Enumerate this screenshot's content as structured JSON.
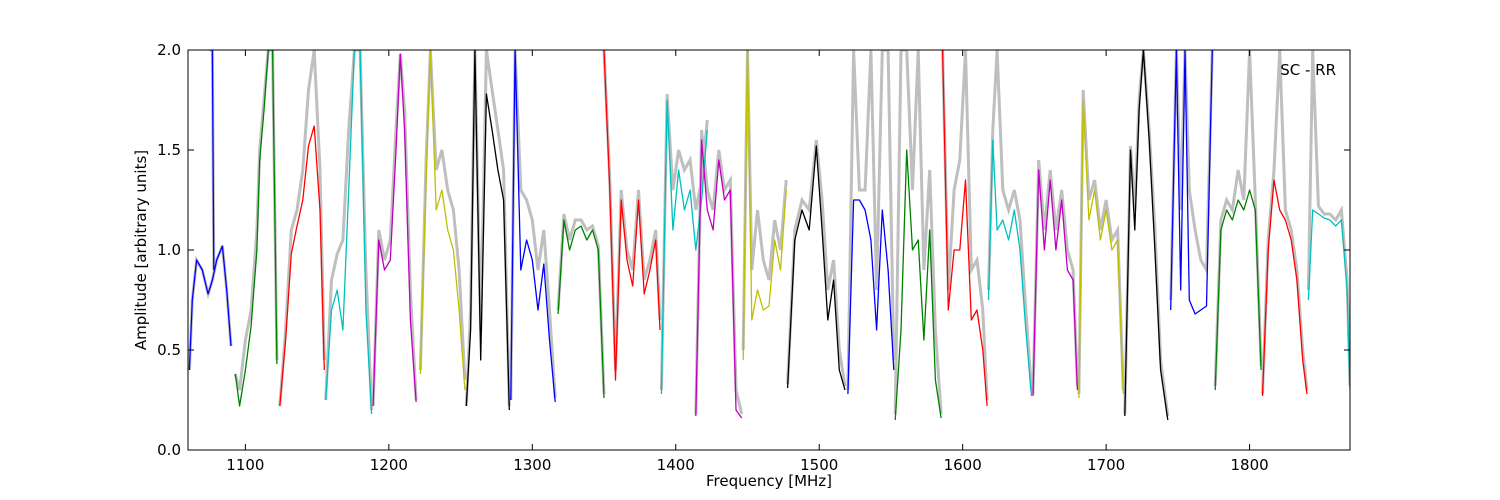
{
  "chart_data": {
    "type": "line",
    "title": "",
    "annotation": "SC - RR",
    "xlabel": "Frequency [MHz]",
    "ylabel": "Amplitude [arbitrary units]",
    "xlim": [
      1060,
      1870
    ],
    "ylim": [
      0.0,
      2.0
    ],
    "x_ticks": [
      1100,
      1200,
      1300,
      1400,
      1500,
      1600,
      1700,
      1800
    ],
    "x_tick_labels": [
      "1100",
      "1200",
      "1300",
      "1400",
      "1500",
      "1600",
      "1700",
      "1800"
    ],
    "y_ticks": [
      0.0,
      0.5,
      1.0,
      1.5,
      2.0
    ],
    "y_tick_labels": [
      "0.0",
      "0.5",
      "1.0",
      "1.5",
      "2.0"
    ],
    "grid": false,
    "legend": null,
    "background_series_color": "#bfbfbf",
    "series": [
      {
        "color": "#0000ff",
        "x": [
          1061,
          1063,
          1066,
          1070,
          1074,
          1077,
          1080,
          1084,
          1087,
          1090
        ],
        "y": [
          0.4,
          0.75,
          0.95,
          0.9,
          0.78,
          0.85,
          0.95,
          1.02,
          0.8,
          0.52
        ],
        "background": [
          0.4,
          0.75,
          0.95,
          0.9,
          0.78,
          0.85,
          0.95,
          1.02,
          0.8,
          0.52
        ]
      },
      {
        "color": "#0000ff",
        "x": [
          1075,
          1076,
          1077,
          1078
        ],
        "y": [
          2.0,
          2.0,
          2.0,
          0.9
        ],
        "background": [
          2.0,
          2.0,
          2.0,
          0.9
        ]
      },
      {
        "color": "#008000",
        "x": [
          1093,
          1096,
          1100,
          1104,
          1108,
          1110,
          1113,
          1116,
          1119,
          1122
        ],
        "y": [
          0.38,
          0.22,
          0.4,
          0.62,
          1.0,
          1.45,
          1.7,
          2.0,
          2.0,
          0.43
        ],
        "background": [
          0.38,
          0.3,
          0.55,
          0.7,
          1.1,
          1.5,
          1.75,
          2.0,
          2.0,
          0.45
        ]
      },
      {
        "color": "#ff0000",
        "x": [
          1124,
          1128,
          1132,
          1136,
          1140,
          1144,
          1148,
          1152,
          1155
        ],
        "y": [
          0.22,
          0.55,
          0.98,
          1.12,
          1.25,
          1.52,
          1.62,
          1.2,
          0.4
        ],
        "background": [
          0.22,
          0.6,
          1.1,
          1.2,
          1.4,
          1.8,
          2.0,
          1.4,
          0.45
        ]
      },
      {
        "color": "#00bfbf",
        "x": [
          1156,
          1160,
          1164,
          1168,
          1172,
          1176,
          1180,
          1184,
          1188
        ],
        "y": [
          0.25,
          0.7,
          0.8,
          0.6,
          1.3,
          2.0,
          2.0,
          0.7,
          0.18
        ],
        "background": [
          0.25,
          0.85,
          0.98,
          1.05,
          1.6,
          2.0,
          2.0,
          0.9,
          0.2
        ]
      },
      {
        "color": "#bf00bf",
        "x": [
          1189,
          1193,
          1197,
          1201,
          1205,
          1208,
          1211,
          1215,
          1219
        ],
        "y": [
          0.22,
          1.05,
          0.9,
          0.95,
          1.5,
          1.98,
          1.6,
          0.65,
          0.24
        ],
        "background": [
          0.22,
          1.1,
          0.95,
          1.05,
          1.6,
          1.98,
          1.7,
          0.8,
          0.25
        ]
      },
      {
        "color": "#bfbf00",
        "x": [
          1222,
          1226,
          1229,
          1233,
          1237,
          1241,
          1245,
          1249,
          1253
        ],
        "y": [
          0.38,
          1.35,
          2.0,
          1.2,
          1.3,
          1.1,
          1.0,
          0.7,
          0.3
        ],
        "background": [
          0.4,
          1.45,
          2.0,
          1.4,
          1.5,
          1.3,
          1.2,
          0.9,
          0.35
        ]
      },
      {
        "color": "#000000",
        "x": [
          1254,
          1257,
          1260,
          1264,
          1268,
          1272,
          1276,
          1280,
          1284
        ],
        "y": [
          0.22,
          0.6,
          2.0,
          0.45,
          1.78,
          1.6,
          1.4,
          1.25,
          0.2
        ],
        "background": [
          0.22,
          0.7,
          2.0,
          0.6,
          2.0,
          1.8,
          1.6,
          1.4,
          0.22
        ]
      },
      {
        "color": "#0000ff",
        "x": [
          1285,
          1288,
          1292,
          1296,
          1300,
          1304,
          1308,
          1312,
          1316
        ],
        "y": [
          0.25,
          2.0,
          0.9,
          1.05,
          0.95,
          0.7,
          0.93,
          0.55,
          0.24
        ],
        "background": [
          0.25,
          2.0,
          1.3,
          1.25,
          1.15,
          0.9,
          1.1,
          0.7,
          0.26
        ]
      },
      {
        "color": "#008000",
        "x": [
          1318,
          1322,
          1326,
          1330,
          1334,
          1338,
          1342,
          1346,
          1350
        ],
        "y": [
          0.68,
          1.15,
          1.0,
          1.1,
          1.12,
          1.05,
          1.1,
          1.0,
          0.26
        ],
        "background": [
          0.7,
          1.18,
          1.05,
          1.15,
          1.15,
          1.1,
          1.12,
          1.02,
          0.28
        ]
      },
      {
        "color": "#ff0000",
        "x": [
          1350,
          1354,
          1358,
          1362,
          1366,
          1370,
          1374,
          1378,
          1382,
          1386,
          1389
        ],
        "y": [
          2.0,
          1.3,
          0.35,
          1.25,
          0.95,
          0.82,
          1.25,
          0.78,
          0.9,
          1.05,
          0.6
        ],
        "background": [
          2.0,
          1.35,
          0.4,
          1.3,
          1.0,
          0.9,
          1.3,
          0.85,
          0.95,
          1.1,
          0.65
        ]
      },
      {
        "color": "#00bfbf",
        "x": [
          1390,
          1394,
          1398,
          1402,
          1406,
          1410,
          1414,
          1418,
          1422
        ],
        "y": [
          0.28,
          1.75,
          1.1,
          1.4,
          1.2,
          1.3,
          1.0,
          1.25,
          1.6
        ],
        "background": [
          0.3,
          1.78,
          1.3,
          1.5,
          1.4,
          1.45,
          1.2,
          1.35,
          1.65
        ]
      },
      {
        "color": "#bf00bf",
        "x": [
          1414,
          1418,
          1422,
          1426,
          1430,
          1434,
          1438,
          1442,
          1446
        ],
        "y": [
          0.17,
          1.55,
          1.2,
          1.1,
          1.45,
          1.25,
          1.3,
          0.2,
          0.16
        ],
        "background": [
          0.18,
          1.6,
          1.3,
          1.2,
          1.5,
          1.3,
          1.35,
          0.3,
          0.18
        ]
      },
      {
        "color": "#bfbf00",
        "x": [
          1447,
          1450,
          1453,
          1457,
          1461,
          1465,
          1469,
          1473,
          1477
        ],
        "y": [
          0.45,
          2.0,
          0.65,
          0.8,
          0.7,
          0.72,
          1.05,
          0.9,
          1.3
        ],
        "background": [
          0.5,
          2.0,
          0.9,
          1.2,
          0.95,
          0.85,
          1.15,
          1.0,
          1.35
        ]
      },
      {
        "color": "#000000",
        "x": [
          1478,
          1483,
          1488,
          1493,
          1498,
          1502,
          1506,
          1510,
          1514,
          1518
        ],
        "y": [
          0.31,
          1.05,
          1.2,
          1.1,
          1.52,
          1.1,
          0.65,
          0.85,
          0.4,
          0.3
        ],
        "background": [
          0.33,
          1.1,
          1.25,
          1.2,
          1.55,
          1.25,
          0.8,
          0.95,
          0.5,
          0.32
        ]
      },
      {
        "color": "#0000ff",
        "x": [
          1520,
          1524,
          1528,
          1532,
          1536,
          1540,
          1544,
          1548,
          1552
        ],
        "y": [
          0.28,
          1.25,
          1.25,
          1.2,
          1.05,
          0.6,
          1.2,
          0.9,
          0.4
        ],
        "background": [
          0.3,
          2.0,
          1.3,
          1.3,
          2.0,
          0.8,
          2.0,
          2.0,
          0.45
        ]
      },
      {
        "color": "#008000",
        "x": [
          1553,
          1557,
          1561,
          1565,
          1569,
          1573,
          1577,
          1581,
          1585
        ],
        "y": [
          0.15,
          0.6,
          1.5,
          1.0,
          1.05,
          0.55,
          1.1,
          0.35,
          0.16
        ],
        "background": [
          0.18,
          2.0,
          2.0,
          1.3,
          2.0,
          0.9,
          1.4,
          0.6,
          0.18
        ]
      },
      {
        "color": "#ff0000",
        "x": [
          1586,
          1590,
          1594,
          1598,
          1602,
          1606,
          1610,
          1614,
          1617
        ],
        "y": [
          2.0,
          0.7,
          1.0,
          1.0,
          1.35,
          0.65,
          0.7,
          0.5,
          0.22
        ],
        "background": [
          2.0,
          0.8,
          1.3,
          1.45,
          2.0,
          0.9,
          0.95,
          0.7,
          0.25
        ]
      },
      {
        "color": "#00bfbf",
        "x": [
          1618,
          1621,
          1624,
          1628,
          1632,
          1636,
          1640,
          1644,
          1648
        ],
        "y": [
          0.75,
          1.55,
          1.1,
          1.15,
          1.05,
          1.2,
          1.0,
          0.6,
          0.27
        ],
        "background": [
          0.8,
          1.6,
          2.0,
          1.3,
          1.2,
          1.3,
          1.15,
          0.7,
          0.3
        ]
      },
      {
        "color": "#bf00bf",
        "x": [
          1649,
          1653,
          1657,
          1661,
          1665,
          1669,
          1673,
          1677,
          1680
        ],
        "y": [
          0.27,
          1.4,
          1.0,
          1.35,
          1.0,
          1.25,
          0.9,
          0.85,
          0.3
        ],
        "background": [
          0.28,
          1.45,
          1.1,
          1.4,
          1.1,
          1.3,
          1.0,
          0.9,
          0.32
        ]
      },
      {
        "color": "#bfbf00",
        "x": [
          1681,
          1684,
          1688,
          1692,
          1696,
          1700,
          1704,
          1708,
          1712
        ],
        "y": [
          0.26,
          1.75,
          1.15,
          1.3,
          1.05,
          1.2,
          1.0,
          1.05,
          0.28
        ],
        "background": [
          0.28,
          1.8,
          1.25,
          1.35,
          1.1,
          1.25,
          1.05,
          1.1,
          0.3
        ]
      },
      {
        "color": "#000000",
        "x": [
          1713,
          1717,
          1720,
          1723,
          1726,
          1730,
          1734,
          1738,
          1743
        ],
        "y": [
          0.17,
          1.5,
          1.1,
          1.7,
          2.0,
          1.55,
          1.0,
          0.4,
          0.15
        ],
        "background": [
          0.18,
          1.52,
          1.2,
          1.75,
          2.0,
          1.6,
          1.1,
          0.45,
          0.17
        ]
      },
      {
        "color": "#0000ff",
        "x": [
          1745,
          1749,
          1752,
          1755,
          1758,
          1762,
          1766,
          1770,
          1774
        ],
        "y": [
          0.7,
          2.0,
          0.8,
          2.0,
          0.75,
          0.68,
          0.7,
          0.72,
          2.0
        ],
        "background": [
          0.75,
          2.0,
          1.2,
          2.0,
          1.3,
          1.1,
          0.95,
          0.9,
          2.0
        ]
      },
      {
        "color": "#008000",
        "x": [
          1776,
          1780,
          1784,
          1788,
          1792,
          1796,
          1800,
          1804,
          1808
        ],
        "y": [
          0.3,
          1.1,
          1.2,
          1.15,
          1.25,
          1.2,
          1.3,
          1.2,
          0.4
        ],
        "background": [
          0.32,
          1.15,
          1.25,
          1.2,
          1.4,
          1.25,
          2.0,
          1.25,
          0.42
        ]
      },
      {
        "color": "#ff0000",
        "x": [
          1809,
          1813,
          1817,
          1821,
          1825,
          1829,
          1833,
          1837,
          1840
        ],
        "y": [
          0.27,
          1.0,
          1.35,
          1.2,
          1.15,
          1.05,
          0.85,
          0.45,
          0.28
        ],
        "background": [
          0.28,
          1.05,
          1.4,
          2.0,
          1.2,
          1.1,
          0.9,
          0.5,
          0.3
        ]
      },
      {
        "color": "#00bfbf",
        "x": [
          1841,
          1844,
          1848,
          1852,
          1856,
          1860,
          1864,
          1868,
          1870
        ],
        "y": [
          0.75,
          1.2,
          1.18,
          1.16,
          1.15,
          1.12,
          1.15,
          0.8,
          0.3
        ],
        "background": [
          0.8,
          2.0,
          1.22,
          1.18,
          1.18,
          1.15,
          1.2,
          0.85,
          0.32
        ]
      }
    ]
  }
}
